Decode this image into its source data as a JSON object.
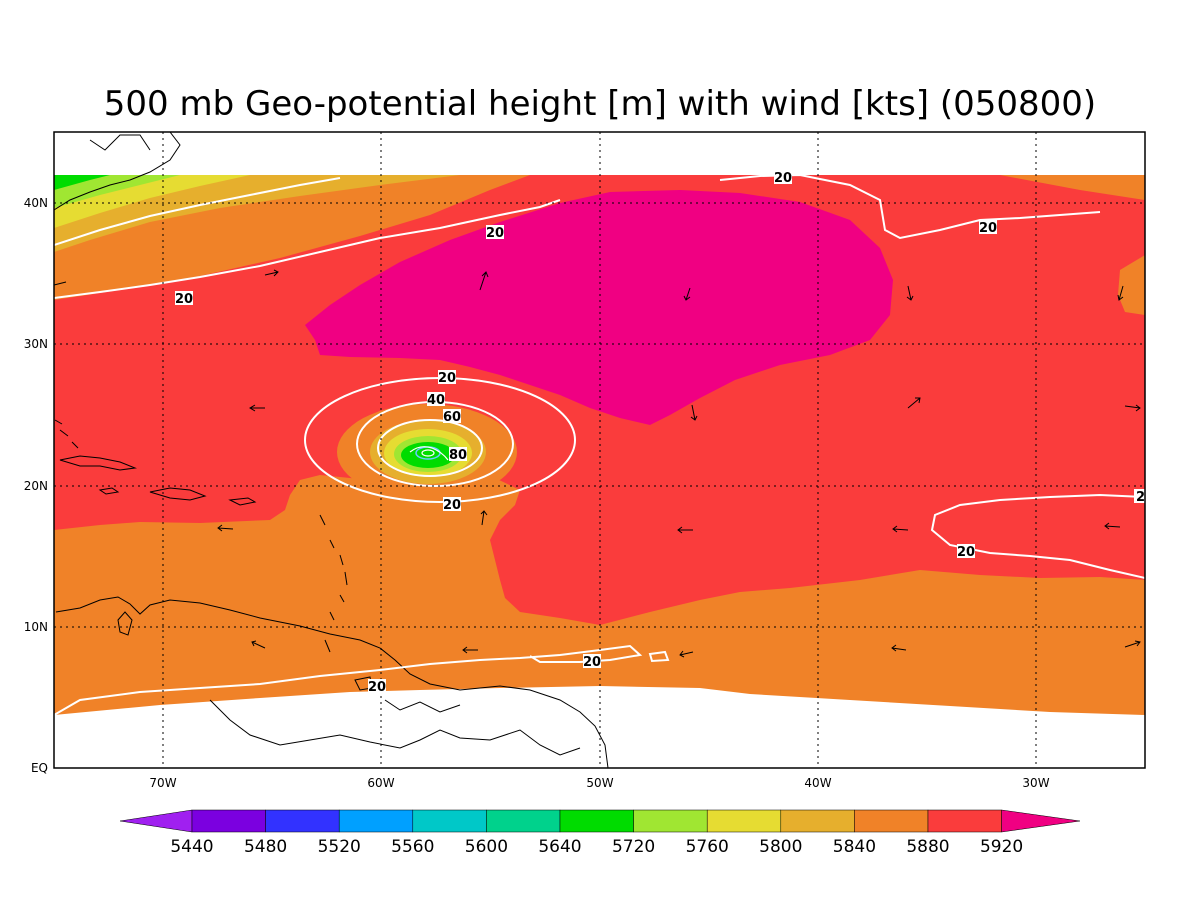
{
  "title": "500 mb Geo-potential height [m] with wind [kts] (050800)",
  "map": {
    "x_ticks": [
      "70W",
      "60W",
      "50W",
      "40W",
      "30W"
    ],
    "y_ticks": [
      "40N",
      "30N",
      "20N",
      "10N",
      "EQ"
    ],
    "contour_labels": [
      "20",
      "20",
      "20",
      "20",
      "20",
      "20",
      "20",
      "20",
      "2",
      "40",
      "60",
      "80"
    ]
  },
  "colorbar": {
    "labels": [
      "5440",
      "5480",
      "5520",
      "5560",
      "5600",
      "5640",
      "5720",
      "5760",
      "5800",
      "5840",
      "5880",
      "5920"
    ],
    "colors": [
      "#a020f0",
      "#7b00e0",
      "#3232ff",
      "#00a0ff",
      "#00c8c8",
      "#00d28c",
      "#00dc00",
      "#a0e632",
      "#e6dc32",
      "#e6af2d",
      "#f08228",
      "#fa3c3c",
      "#f00082"
    ]
  },
  "fills": {
    "band_5720": "#00dc00",
    "band_5760": "#a0e632",
    "band_5800": "#e6dc32",
    "band_5840": "#e6af2d",
    "band_5880": "#f08228",
    "band_5920": "#fa3c3c",
    "band_max": "#f00082",
    "land_line": "#000000",
    "wind_contour": "#ffffff"
  }
}
